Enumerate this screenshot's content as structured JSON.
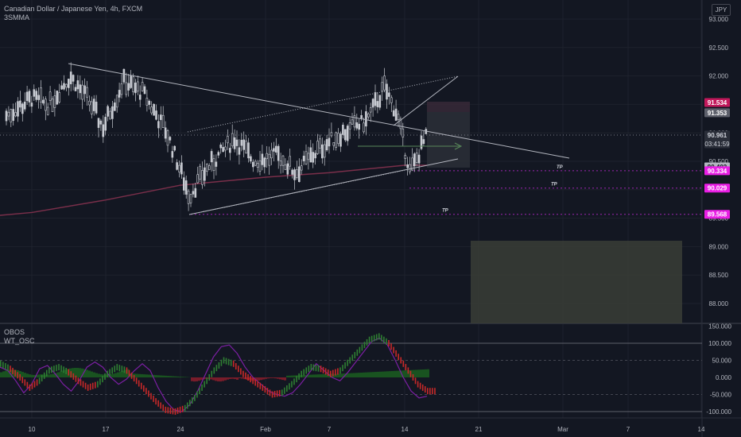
{
  "header": {
    "symbol_line": "Canadian Dollar / Japanese Yen, 4h, FXCM",
    "indicator_label": "3SMMA",
    "currency_badge": "JPY"
  },
  "oscillator": {
    "label_obos": "OBOS",
    "label_wt": "WT_OSC"
  },
  "colors": {
    "background": "#131722",
    "grid": "#1e222d",
    "candle": "#c8cbd2",
    "trendline": "#b2b5be",
    "sma": "#7a2f4a",
    "tp_line": "#9c27b0",
    "wt_line": "#7b1fa2",
    "hist_up": "#1b5e20",
    "hist_down": "#8b1d2c",
    "tag_magenta": "#e91ee4",
    "tag_pink": "#c2185b",
    "box": "#3a3d36"
  },
  "chart_data": [
    {
      "type": "candlestick",
      "title": "Canadian Dollar / Japanese Yen, 4h, FXCM",
      "x_ticks": [
        "10",
        "17",
        "24",
        "Feb",
        "7",
        "14",
        "21",
        "Mar",
        "7",
        "14"
      ],
      "y_ticks": [
        "93.000",
        "92.500",
        "92.000",
        "91.500",
        "91.000",
        "90.500",
        "90.000",
        "89.500",
        "89.000",
        "88.500",
        "88.000"
      ],
      "y_range": [
        87.65,
        93.2
      ],
      "grid": true,
      "series": [
        {
          "name": "3SMMA",
          "x": [
            "10",
            "17",
            "24",
            "Feb",
            "7",
            "14"
          ],
          "values": [
            89.6,
            89.82,
            90.08,
            90.22,
            90.3,
            90.43
          ]
        }
      ],
      "price_labels": [
        {
          "text": "91.534",
          "style": "pink"
        },
        {
          "text": "91.353",
          "style": "grey"
        },
        {
          "text": "90.961",
          "sub": "03:41:59",
          "style": "dark"
        },
        {
          "text": "90.402",
          "style": "light"
        },
        {
          "text": "90.334",
          "style": "magenta"
        },
        {
          "text": "90.029",
          "style": "magenta"
        },
        {
          "text": "89.568",
          "style": "magenta"
        }
      ],
      "annotations": [
        "TP",
        "TP",
        "TP"
      ]
    },
    {
      "type": "line",
      "title": "OBOS",
      "y_ticks": [
        "150.000",
        "100.000",
        "50.000",
        "0.000",
        "-50.000",
        "-100.000"
      ],
      "y_range": [
        -110,
        150
      ],
      "levels": [
        100,
        50,
        -50,
        -100
      ],
      "series": [
        {
          "name": "WT_OSC",
          "values": [
            30,
            20,
            -10,
            -45,
            -20,
            25,
            35,
            10,
            -20,
            -40,
            -10,
            30,
            45,
            30,
            0,
            -20,
            -5,
            20,
            40,
            20,
            -30,
            -70,
            -95,
            -100,
            -80,
            -40,
            10,
            60,
            90,
            95,
            70,
            30,
            0,
            -20,
            -40,
            -50,
            -55,
            -45,
            -20,
            10,
            40,
            20,
            0,
            -10,
            15,
            45,
            75,
            105,
            115,
            95,
            50,
            0,
            -40,
            -60,
            -55
          ]
        }
      ]
    }
  ],
  "x_axis": [
    "10",
    "17",
    "24",
    "Feb",
    "7",
    "14",
    "21",
    "Mar",
    "7",
    "14"
  ]
}
